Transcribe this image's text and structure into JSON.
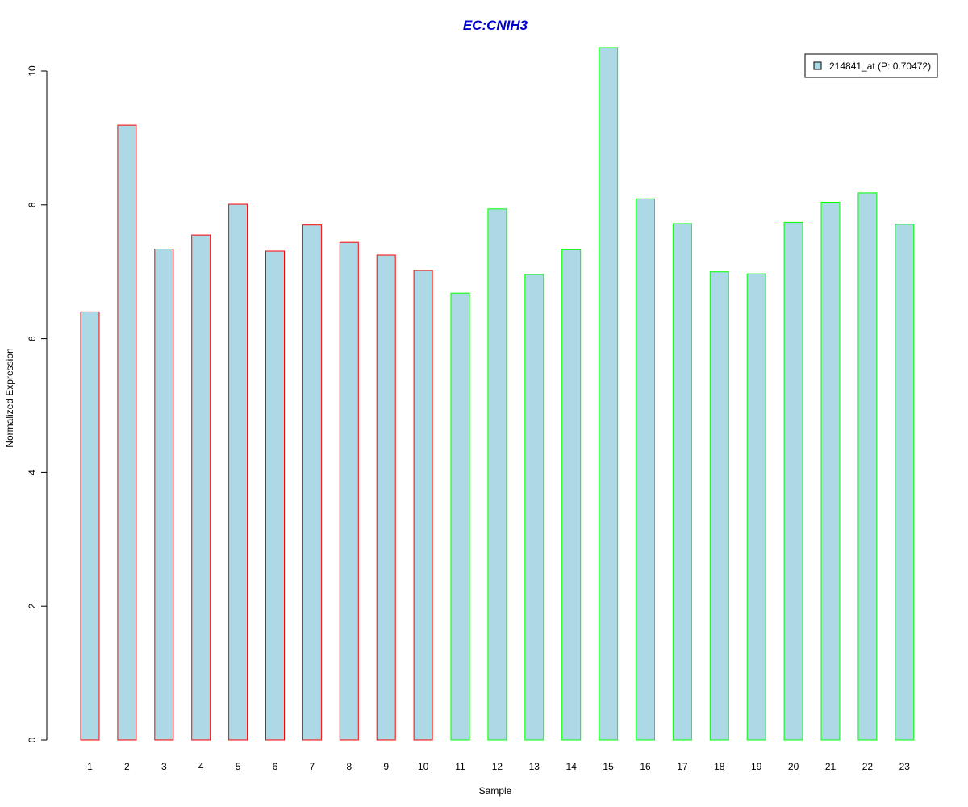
{
  "chart_data": {
    "type": "bar",
    "title": "EC:CNIH3",
    "xlabel": "Sample",
    "ylabel": "Normalized Expression",
    "categories": [
      "1",
      "2",
      "3",
      "4",
      "5",
      "6",
      "7",
      "8",
      "9",
      "10",
      "11",
      "12",
      "13",
      "14",
      "15",
      "16",
      "17",
      "18",
      "19",
      "20",
      "21",
      "22",
      "23"
    ],
    "series": [
      {
        "name": "214841_at (P: 0.70472)",
        "values": [
          6.4,
          9.19,
          7.34,
          7.55,
          8.01,
          7.31,
          7.7,
          7.44,
          7.25,
          7.02,
          6.68,
          7.94,
          6.96,
          7.33,
          10.35,
          8.09,
          7.72,
          7.0,
          6.97,
          7.74,
          8.04,
          8.18,
          7.71
        ]
      }
    ],
    "group_of_sample": [
      "red",
      "red",
      "red",
      "red",
      "red",
      "red",
      "red",
      "red",
      "red",
      "red",
      "green",
      "green",
      "green",
      "green",
      "green",
      "green",
      "green",
      "green",
      "green",
      "green",
      "green",
      "green",
      "green"
    ],
    "ylim": [
      0,
      10.35
    ],
    "yticks": [
      0,
      2,
      4,
      6,
      8,
      10
    ],
    "legend_position": "top-right",
    "grid": false
  },
  "colors": {
    "bar_fill": "#add8e6",
    "red": "#ff0000",
    "green": "#00ff00",
    "title": "#0000cc",
    "axis": "#000000"
  }
}
